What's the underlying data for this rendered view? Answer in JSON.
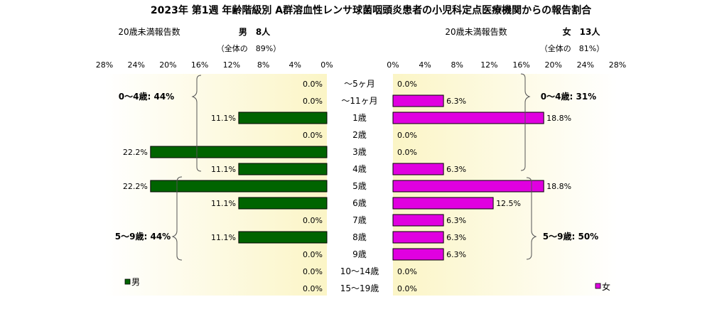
{
  "chart_data": {
    "type": "bar",
    "title": "2023年 第1週 年齢階級別 A群溶血性レンサ球菌咽頭炎患者の小児科定点医療機関からの報告割合",
    "categories": [
      "～5ヶ月",
      "～11ヶ月",
      "1歳",
      "2歳",
      "3歳",
      "4歳",
      "5歳",
      "6歳",
      "7歳",
      "8歳",
      "9歳",
      "10～14歳",
      "15～19歳"
    ],
    "xlim": [
      0,
      28
    ],
    "ticks": [
      "0%",
      "4%",
      "8%",
      "12%",
      "16%",
      "20%",
      "24%",
      "28%"
    ],
    "tick_values": [
      0,
      4,
      8,
      12,
      16,
      20,
      24,
      28
    ],
    "series": [
      {
        "name": "男",
        "color": "#006400",
        "values": [
          0.0,
          0.0,
          11.1,
          0.0,
          22.2,
          11.1,
          22.2,
          11.1,
          0.0,
          11.1,
          0.0,
          0.0,
          0.0
        ],
        "labels": [
          "0.0%",
          "0.0%",
          "11.1%",
          "0.0%",
          "22.2%",
          "11.1%",
          "22.2%",
          "11.1%",
          "0.0%",
          "11.1%",
          "0.0%",
          "0.0%",
          "0.0%"
        ],
        "header_left": "20歳未満報告数",
        "header_count": "男　8人",
        "header_total": "（全体の　89%）",
        "group_0_4": "0～4歳: 44%",
        "group_5_9": "5～9歳: 44%"
      },
      {
        "name": "女",
        "color": "#e000e0",
        "values": [
          0.0,
          6.3,
          18.8,
          0.0,
          0.0,
          6.3,
          18.8,
          12.5,
          6.3,
          6.3,
          6.3,
          0.0,
          0.0
        ],
        "labels": [
          "0.0%",
          "6.3%",
          "18.8%",
          "0.0%",
          "0.0%",
          "6.3%",
          "18.8%",
          "12.5%",
          "6.3%",
          "6.3%",
          "6.3%",
          "0.0%",
          "0.0%"
        ],
        "header_left": "20歳未満報告数",
        "header_count": "女　13人",
        "header_total": "（全体の　81%）",
        "group_0_4": "0～4歳: 31%",
        "group_5_9": "5～9歳: 50%"
      }
    ],
    "grid": false,
    "legend": "bottom"
  }
}
